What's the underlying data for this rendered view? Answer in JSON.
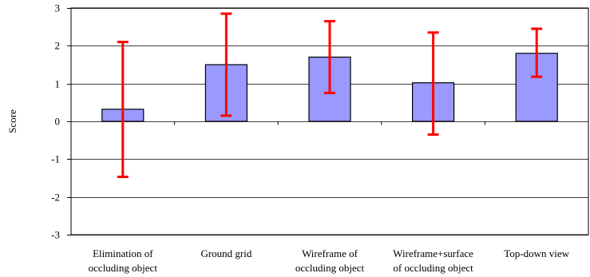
{
  "chart_data": {
    "type": "bar",
    "title": "",
    "xlabel": "",
    "ylabel": "Score",
    "ylim": [
      -3,
      3
    ],
    "yticks": [
      3,
      2,
      1,
      0,
      -1,
      -2,
      -3
    ],
    "grid": true,
    "categories": [
      [
        "Elimination of",
        "occluding object"
      ],
      [
        "Ground grid"
      ],
      [
        "Wireframe of",
        "occluding object"
      ],
      [
        "Wireframe+surface",
        "of occluding object"
      ],
      [
        "Top-down view"
      ]
    ],
    "values": [
      0.32,
      1.5,
      1.7,
      1.02,
      1.8
    ],
    "error_upper": [
      2.1,
      2.85,
      2.65,
      2.35,
      2.45
    ],
    "error_lower": [
      -1.47,
      0.15,
      0.75,
      -0.35,
      1.18
    ],
    "colors": {
      "bar_fill": "#9999ff",
      "bar_stroke": "#000000",
      "error_bar": "#ff0000",
      "grid": "#000000"
    }
  }
}
